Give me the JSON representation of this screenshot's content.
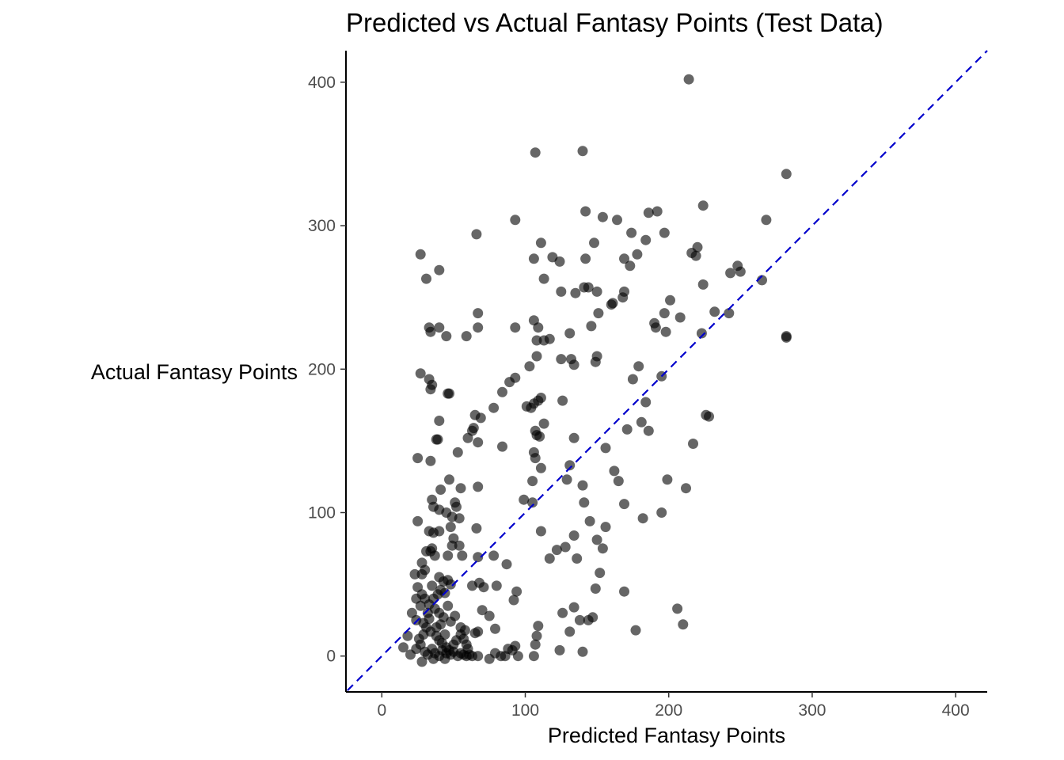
{
  "chart_data": {
    "type": "scatter",
    "title": "Predicted vs Actual Fantasy Points (Test Data)",
    "xlabel": "Predicted Fantasy Points",
    "ylabel": "Actual Fantasy Points",
    "xlim": [
      -25,
      422
    ],
    "ylim": [
      -25,
      422
    ],
    "xticks": [
      "0",
      "100",
      "200",
      "300",
      "400"
    ],
    "yticks": [
      "0",
      "100",
      "200",
      "300",
      "400"
    ],
    "grid": false,
    "reference_line": {
      "slope": 1,
      "intercept": 0,
      "style": "dashed",
      "color": "#0000cc"
    },
    "point_color": "#000000",
    "point_opacity": 0.6,
    "points": [
      [
        214,
        402
      ],
      [
        107,
        351
      ],
      [
        140,
        352
      ],
      [
        282,
        336
      ],
      [
        93,
        304
      ],
      [
        142,
        310
      ],
      [
        154,
        306
      ],
      [
        164,
        304
      ],
      [
        174,
        295
      ],
      [
        186,
        309
      ],
      [
        192,
        310
      ],
      [
        197,
        295
      ],
      [
        224,
        314
      ],
      [
        268,
        304
      ],
      [
        66,
        294
      ],
      [
        111,
        288
      ],
      [
        148,
        288
      ],
      [
        178,
        280
      ],
      [
        184,
        290
      ],
      [
        216,
        281
      ],
      [
        219,
        279
      ],
      [
        220,
        285
      ],
      [
        27,
        280
      ],
      [
        106,
        277
      ],
      [
        119,
        278
      ],
      [
        124,
        275
      ],
      [
        142,
        277
      ],
      [
        169,
        277
      ],
      [
        173,
        272
      ],
      [
        31,
        263
      ],
      [
        40,
        269
      ],
      [
        113,
        263
      ],
      [
        125,
        254
      ],
      [
        135,
        253
      ],
      [
        141,
        257
      ],
      [
        144,
        257
      ],
      [
        150,
        254
      ],
      [
        168,
        250
      ],
      [
        169,
        254
      ],
      [
        224,
        259
      ],
      [
        243,
        267
      ],
      [
        248,
        272
      ],
      [
        250,
        268
      ],
      [
        265,
        262
      ],
      [
        160,
        245
      ],
      [
        161,
        246
      ],
      [
        201,
        248
      ],
      [
        232,
        240
      ],
      [
        242,
        239
      ],
      [
        106,
        234
      ],
      [
        146,
        230
      ],
      [
        151,
        239
      ],
      [
        190,
        232
      ],
      [
        191,
        229
      ],
      [
        197,
        239
      ],
      [
        208,
        236
      ],
      [
        33,
        229
      ],
      [
        34,
        226
      ],
      [
        40,
        229
      ],
      [
        45,
        223
      ],
      [
        67,
        239
      ],
      [
        67,
        229
      ],
      [
        59,
        223
      ],
      [
        93,
        229
      ],
      [
        109,
        229
      ],
      [
        108,
        220
      ],
      [
        113,
        220
      ],
      [
        117,
        221
      ],
      [
        131,
        225
      ],
      [
        198,
        226
      ],
      [
        223,
        225
      ],
      [
        282,
        223
      ],
      [
        27,
        197
      ],
      [
        33,
        193
      ],
      [
        34,
        186
      ],
      [
        35,
        189
      ],
      [
        46,
        183
      ],
      [
        47,
        183
      ],
      [
        103,
        202
      ],
      [
        108,
        209
      ],
      [
        125,
        207
      ],
      [
        132,
        207
      ],
      [
        134,
        203
      ],
      [
        149,
        205
      ],
      [
        150,
        209
      ],
      [
        175,
        193
      ],
      [
        179,
        202
      ],
      [
        195,
        195
      ],
      [
        282,
        222
      ],
      [
        93,
        194
      ],
      [
        89,
        191
      ],
      [
        84,
        184
      ],
      [
        101,
        174
      ],
      [
        104,
        173
      ],
      [
        106,
        176
      ],
      [
        109,
        178
      ],
      [
        111,
        180
      ],
      [
        126,
        178
      ],
      [
        184,
        177
      ],
      [
        226,
        168
      ],
      [
        228,
        167
      ],
      [
        40,
        164
      ],
      [
        65,
        168
      ],
      [
        69,
        166
      ],
      [
        78,
        173
      ],
      [
        63,
        157
      ],
      [
        64,
        159
      ],
      [
        60,
        152
      ],
      [
        67,
        149
      ],
      [
        38,
        151
      ],
      [
        39,
        151
      ],
      [
        107,
        157
      ],
      [
        108,
        154
      ],
      [
        110,
        153
      ],
      [
        113,
        162
      ],
      [
        134,
        152
      ],
      [
        171,
        158
      ],
      [
        181,
        163
      ],
      [
        186,
        157
      ],
      [
        217,
        148
      ],
      [
        25,
        138
      ],
      [
        34,
        136
      ],
      [
        53,
        142
      ],
      [
        84,
        146
      ],
      [
        106,
        142
      ],
      [
        107,
        138
      ],
      [
        111,
        131
      ],
      [
        131,
        133
      ],
      [
        156,
        145
      ],
      [
        162,
        129
      ],
      [
        165,
        122
      ],
      [
        105,
        122
      ],
      [
        129,
        123
      ],
      [
        140,
        119
      ],
      [
        199,
        123
      ],
      [
        212,
        117
      ],
      [
        47,
        123
      ],
      [
        41,
        116
      ],
      [
        55,
        117
      ],
      [
        67,
        118
      ],
      [
        35,
        109
      ],
      [
        36,
        104
      ],
      [
        40,
        102
      ],
      [
        45,
        100
      ],
      [
        49,
        97
      ],
      [
        52,
        104
      ],
      [
        51,
        107
      ],
      [
        54,
        96
      ],
      [
        25,
        94
      ],
      [
        33,
        87
      ],
      [
        36,
        86
      ],
      [
        40,
        87
      ],
      [
        48,
        90
      ],
      [
        66,
        89
      ],
      [
        99,
        109
      ],
      [
        105,
        107
      ],
      [
        141,
        107
      ],
      [
        111,
        87
      ],
      [
        134,
        84
      ],
      [
        145,
        94
      ],
      [
        156,
        90
      ],
      [
        169,
        106
      ],
      [
        182,
        96
      ],
      [
        195,
        100
      ],
      [
        31,
        73
      ],
      [
        34,
        73
      ],
      [
        35,
        75
      ],
      [
        37,
        70
      ],
      [
        46,
        70
      ],
      [
        49,
        77
      ],
      [
        50,
        82
      ],
      [
        54,
        77
      ],
      [
        56,
        70
      ],
      [
        67,
        69
      ],
      [
        78,
        70
      ],
      [
        87,
        64
      ],
      [
        94,
        45
      ],
      [
        122,
        74
      ],
      [
        128,
        76
      ],
      [
        117,
        68
      ],
      [
        136,
        68
      ],
      [
        150,
        81
      ],
      [
        154,
        75
      ],
      [
        28,
        65
      ],
      [
        30,
        60
      ],
      [
        28,
        57
      ],
      [
        23,
        57
      ],
      [
        40,
        55
      ],
      [
        43,
        52
      ],
      [
        46,
        53
      ],
      [
        41,
        46
      ],
      [
        44,
        44
      ],
      [
        48,
        50
      ],
      [
        35,
        49
      ],
      [
        28,
        43
      ],
      [
        30,
        40
      ],
      [
        33,
        36
      ],
      [
        37,
        33
      ],
      [
        40,
        30
      ],
      [
        43,
        27
      ],
      [
        48,
        24
      ],
      [
        63,
        49
      ],
      [
        68,
        51
      ],
      [
        71,
        48
      ],
      [
        80,
        49
      ],
      [
        92,
        39
      ],
      [
        152,
        58
      ],
      [
        149,
        47
      ],
      [
        169,
        45
      ],
      [
        21,
        30
      ],
      [
        24,
        25
      ],
      [
        29,
        23
      ],
      [
        31,
        20
      ],
      [
        34,
        17
      ],
      [
        38,
        14
      ],
      [
        40,
        11
      ],
      [
        42,
        9
      ],
      [
        45,
        6
      ],
      [
        47,
        4
      ],
      [
        50,
        8
      ],
      [
        52,
        11
      ],
      [
        55,
        15
      ],
      [
        57,
        12
      ],
      [
        59,
        8
      ],
      [
        70,
        32
      ],
      [
        75,
        28
      ],
      [
        79,
        19
      ],
      [
        65,
        16
      ],
      [
        67,
        17
      ],
      [
        88,
        5
      ],
      [
        93,
        7
      ],
      [
        109,
        21
      ],
      [
        108,
        14
      ],
      [
        134,
        34
      ],
      [
        138,
        25
      ],
      [
        126,
        30
      ],
      [
        131,
        17
      ],
      [
        144,
        25
      ],
      [
        147,
        27
      ],
      [
        177,
        18
      ],
      [
        206,
        33
      ],
      [
        210,
        22
      ],
      [
        15,
        6
      ],
      [
        18,
        14
      ],
      [
        20,
        1
      ],
      [
        24,
        5
      ],
      [
        27,
        8
      ],
      [
        30,
        3
      ],
      [
        32,
        1
      ],
      [
        35,
        5
      ],
      [
        37,
        2
      ],
      [
        40,
        0
      ],
      [
        42,
        4
      ],
      [
        45,
        2
      ],
      [
        48,
        1
      ],
      [
        50,
        3
      ],
      [
        53,
        0
      ],
      [
        55,
        2
      ],
      [
        57,
        1
      ],
      [
        59,
        0
      ],
      [
        61,
        1
      ],
      [
        63,
        0
      ],
      [
        67,
        0
      ],
      [
        75,
        -2
      ],
      [
        79,
        2
      ],
      [
        83,
        0
      ],
      [
        86,
        0
      ],
      [
        91,
        4
      ],
      [
        95,
        0
      ],
      [
        106,
        0
      ],
      [
        107,
        8
      ],
      [
        124,
        4
      ],
      [
        140,
        3
      ],
      [
        28,
        -4
      ],
      [
        36,
        -2
      ],
      [
        44,
        -2
      ],
      [
        24,
        40
      ],
      [
        27,
        35
      ],
      [
        25,
        48
      ],
      [
        36,
        40
      ],
      [
        39,
        43
      ],
      [
        32,
        30
      ],
      [
        33,
        26
      ],
      [
        46,
        35
      ],
      [
        51,
        28
      ],
      [
        55,
        20
      ],
      [
        58,
        18
      ],
      [
        60,
        5
      ],
      [
        44,
        15
      ],
      [
        38,
        20
      ],
      [
        41,
        22
      ],
      [
        26,
        12
      ],
      [
        29,
        15
      ]
    ]
  }
}
